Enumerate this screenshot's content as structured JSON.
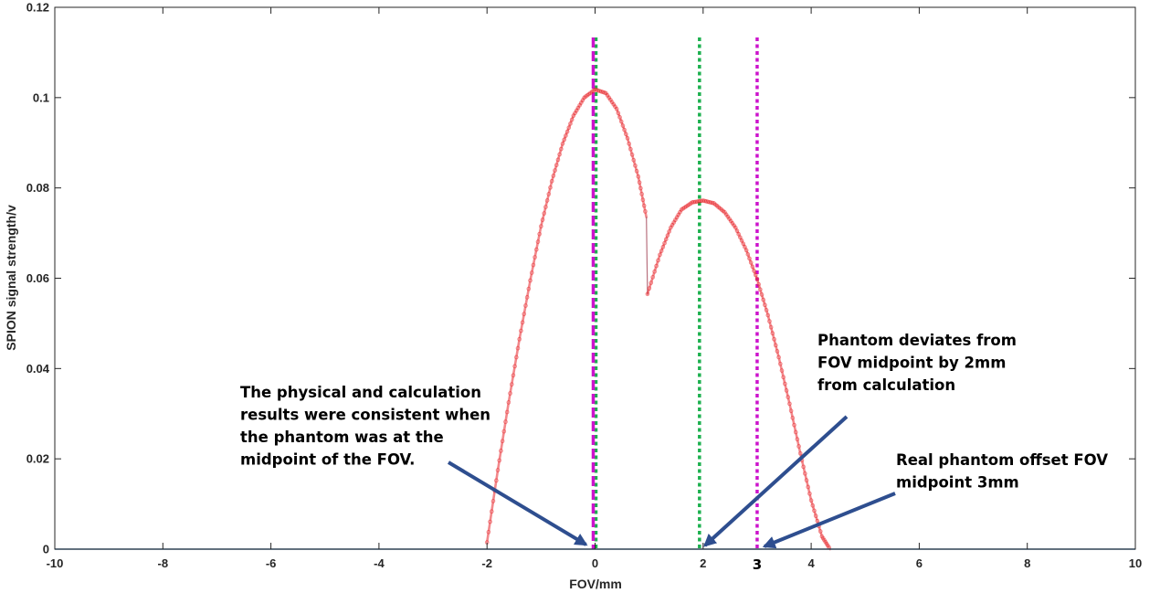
{
  "chart_data": {
    "type": "line",
    "title": "",
    "xlabel": "FOV/mm",
    "ylabel": "SPION signal strength/v",
    "xlim": [
      -10,
      10
    ],
    "ylim": [
      0,
      0.12
    ],
    "xticks": [
      -10,
      -8,
      -6,
      -4,
      -2,
      0,
      2,
      4,
      6,
      8,
      10
    ],
    "yticks": [
      0,
      0.02,
      0.04,
      0.06,
      0.08,
      0.1,
      0.12
    ],
    "grid": false,
    "colors": {
      "signal": "#e8262c",
      "baseline": "#3d7ab0",
      "green_marker": "#1db04f",
      "magenta_marker": "#cc14cc",
      "arrow": "#2e4e8f"
    },
    "series": [
      {
        "name": "SPION signal",
        "segments": [
          {
            "x": [
              -2.0,
              -1.8,
              -1.6,
              -1.4,
              -1.2,
              -1.0,
              -0.8,
              -0.6,
              -0.4,
              -0.2,
              0.0,
              0.2,
              0.4,
              0.6,
              0.8,
              0.95
            ],
            "y": [
              0.0015,
              0.0175,
              0.0325,
              0.0465,
              0.0595,
              0.0715,
              0.0815,
              0.0898,
              0.096,
              0.1,
              0.1018,
              0.101,
              0.0975,
              0.091,
              0.0825,
              0.0735
            ]
          },
          {
            "x": [
              0.95,
              0.97
            ],
            "y": [
              0.0735,
              0.0565
            ]
          },
          {
            "x": [
              0.97,
              1.2,
              1.4,
              1.6,
              1.8,
              2.0,
              2.2,
              2.4,
              2.6,
              2.8,
              3.0,
              3.2,
              3.4,
              3.6,
              3.8,
              4.0,
              4.2,
              4.35
            ],
            "y": [
              0.0565,
              0.0652,
              0.0712,
              0.0752,
              0.0768,
              0.0772,
              0.0766,
              0.0746,
              0.0712,
              0.0662,
              0.0598,
              0.0518,
              0.0425,
              0.0322,
              0.0212,
              0.0108,
              0.0028,
              0.0
            ]
          }
        ]
      },
      {
        "name": "baseline",
        "x": [
          -10,
          10
        ],
        "y": [
          0,
          0
        ]
      }
    ],
    "vlines": [
      {
        "x": 0,
        "style": "green-dotted"
      },
      {
        "x": 0,
        "style": "magenta-dashed"
      },
      {
        "x": 2,
        "style": "green-dotted"
      },
      {
        "x": 3,
        "style": "magenta-dotted"
      }
    ],
    "extra_ticks": [
      {
        "x": 3,
        "label": "3"
      }
    ],
    "annotations": [
      {
        "lines": [
          "The physical and calculation",
          "results were consistent when",
          "the phantom was at the",
          "midpoint of the FOV."
        ],
        "arrow_to": {
          "x": 0,
          "y": 0
        }
      },
      {
        "lines": [
          "Phantom deviates from",
          "FOV midpoint by 2mm",
          "from calculation"
        ],
        "arrow_to": {
          "x": 2,
          "y": 0
        }
      },
      {
        "lines": [
          "Real phantom offset FOV",
          "midpoint 3mm"
        ],
        "arrow_to": {
          "x": 3,
          "y": 0
        }
      }
    ]
  }
}
